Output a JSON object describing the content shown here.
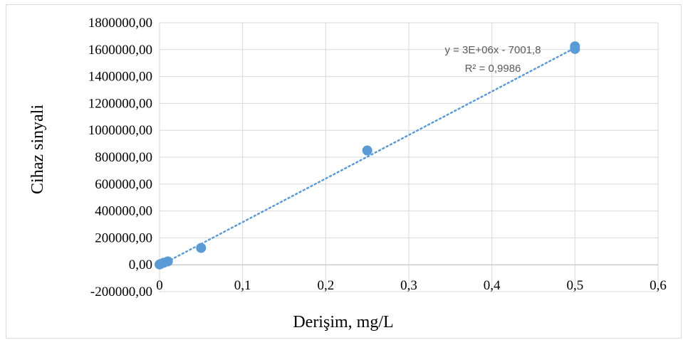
{
  "chart_data": {
    "type": "scatter",
    "xlabel": "Derişim, mg/L",
    "ylabel": "Cihaz sinyali",
    "xlim": [
      0,
      0.6
    ],
    "ylim": [
      -200000,
      1800000
    ],
    "x_ticks": [
      "0",
      "0,1",
      "0,2",
      "0,3",
      "0,4",
      "0,5",
      "0,6"
    ],
    "x_tick_values": [
      0,
      0.1,
      0.2,
      0.3,
      0.4,
      0.5,
      0.6
    ],
    "y_ticks": [
      "-200000,00",
      "0,00",
      "200000,00",
      "400000,00",
      "600000,00",
      "800000,00",
      "1000000,00",
      "1200000,00",
      "1400000,00",
      "1600000,00",
      "1800000,00"
    ],
    "y_tick_values": [
      -200000,
      0,
      200000,
      400000,
      600000,
      800000,
      1000000,
      1200000,
      1400000,
      1600000,
      1800000
    ],
    "grid": true,
    "points": [
      {
        "x": 0.0,
        "y": 2000
      },
      {
        "x": 0.001,
        "y": 5000
      },
      {
        "x": 0.005,
        "y": 15000
      },
      {
        "x": 0.01,
        "y": 25000
      },
      {
        "x": 0.05,
        "y": 125000
      },
      {
        "x": 0.25,
        "y": 850000
      },
      {
        "x": 0.5,
        "y": 1605000
      },
      {
        "x": 0.5,
        "y": 1625000
      }
    ],
    "trendline": {
      "style": "dotted",
      "slope": 3240000,
      "intercept": -7001.8
    },
    "equation": "y = 3E+06x - 7001,8",
    "r_squared": "R² = 0,9986",
    "color": "#5B9BD5"
  }
}
